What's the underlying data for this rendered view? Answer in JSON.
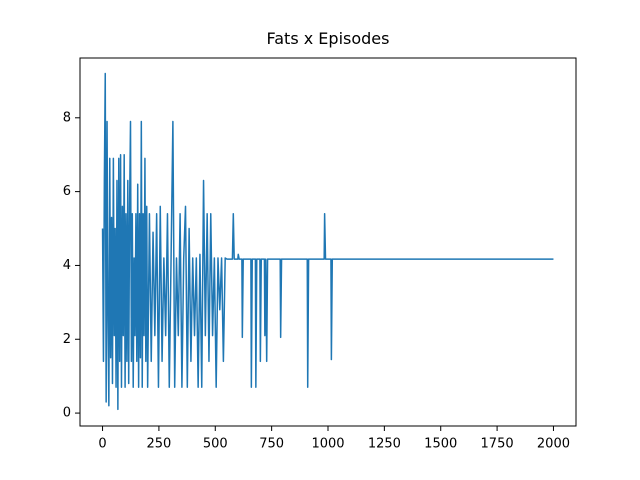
{
  "chart_data": {
    "type": "line",
    "title": "Fats x Episodes",
    "series": [
      {
        "color": "#1f77b4",
        "x": [
          0,
          4,
          8,
          12,
          16,
          20,
          24,
          28,
          32,
          36,
          40,
          44,
          48,
          52,
          56,
          60,
          64,
          68,
          72,
          76,
          80,
          84,
          88,
          92,
          96,
          100,
          104,
          108,
          112,
          116,
          120,
          124,
          128,
          132,
          136,
          140,
          144,
          148,
          152,
          156,
          160,
          164,
          168,
          172,
          176,
          180,
          184,
          188,
          192,
          196,
          200,
          208,
          216,
          224,
          232,
          240,
          248,
          256,
          264,
          272,
          280,
          288,
          296,
          304,
          312,
          320,
          328,
          336,
          344,
          352,
          360,
          368,
          376,
          384,
          392,
          400,
          408,
          416,
          424,
          432,
          440,
          448,
          456,
          464,
          472,
          480,
          488,
          496,
          504,
          512,
          520,
          528,
          536,
          544,
          552,
          560,
          576,
          580,
          584,
          600,
          602,
          606,
          618,
          620,
          624,
          658,
          660,
          664,
          678,
          680,
          684,
          698,
          700,
          704,
          718,
          720,
          724,
          728,
          732,
          788,
          790,
          794,
          908,
          910,
          914,
          983,
          985,
          989,
          1013,
          1015,
          1019,
          2000
        ],
        "values": [
          5.0,
          1.4,
          6.3,
          9.2,
          0.3,
          7.9,
          2.5,
          0.2,
          6.9,
          1.5,
          5.3,
          0.8,
          6.9,
          2.1,
          5.0,
          0.7,
          6.3,
          0.1,
          6.9,
          1.4,
          7.0,
          0.7,
          5.6,
          2.1,
          7.0,
          0.7,
          5.4,
          1.4,
          6.3,
          0.8,
          5.6,
          7.9,
          1.4,
          5.4,
          0.7,
          4.2,
          2.1,
          5.4,
          1.4,
          6.2,
          0.7,
          5.4,
          1.5,
          7.9,
          0.7,
          5.4,
          2.1,
          6.9,
          1.4,
          5.6,
          0.7,
          5.4,
          1.4,
          4.9,
          2.1,
          5.4,
          0.7,
          5.6,
          1.4,
          4.2,
          2.1,
          5.4,
          0.7,
          4.2,
          7.9,
          0.7,
          4.2,
          2.1,
          5.4,
          0.7,
          4.2,
          5.6,
          0.7,
          5.0,
          1.4,
          4.2,
          2.1,
          4.2,
          0.7,
          4.3,
          0.7,
          6.3,
          2.1,
          5.4,
          1.4,
          5.4,
          2.1,
          4.2,
          0.7,
          4.2,
          2.8,
          4.2,
          1.4,
          4.2,
          4.17,
          4.17,
          4.17,
          5.4,
          4.17,
          4.17,
          4.3,
          4.17,
          4.17,
          2.05,
          4.17,
          4.17,
          0.7,
          4.17,
          4.17,
          0.7,
          4.17,
          4.17,
          1.4,
          4.17,
          4.17,
          2.1,
          4.17,
          1.4,
          4.17,
          4.17,
          2.05,
          4.17,
          4.17,
          0.7,
          4.17,
          4.17,
          5.4,
          4.17,
          4.17,
          1.45,
          4.17,
          4.17
        ]
      }
    ],
    "xlim": [
      -100,
      2100
    ],
    "ylim": [
      -0.35,
      9.62
    ],
    "xticks": [
      0,
      250,
      500,
      750,
      1000,
      1250,
      1500,
      1750,
      2000
    ],
    "yticks": [
      0,
      2,
      4,
      6,
      8
    ]
  }
}
